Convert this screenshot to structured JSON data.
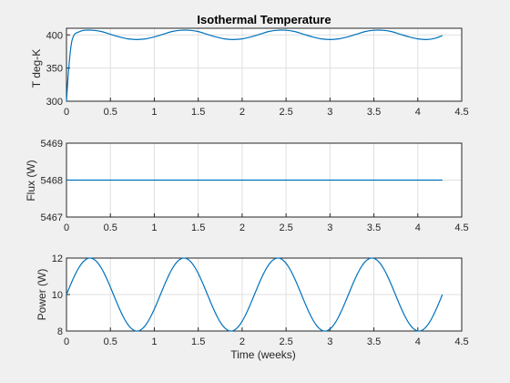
{
  "figure": {
    "background": "#f0f0f0",
    "line_color": "#0072bd"
  },
  "chart_data": [
    {
      "type": "line",
      "title": "Isothermal Temperature",
      "xlabel": "",
      "ylabel": "T deg-K",
      "xlim": [
        0,
        4.5
      ],
      "ylim": [
        300,
        410
      ],
      "xticks": [
        "0",
        "0.5",
        "1",
        "1.5",
        "2",
        "2.5",
        "3",
        "3.5",
        "4",
        "4.5"
      ],
      "yticks": [
        "300",
        "350",
        "400"
      ],
      "grid": true,
      "series": [
        {
          "x": [
            0,
            0.02,
            0.04,
            0.06,
            0.08,
            0.1,
            0.15,
            0.2,
            0.3,
            0.4,
            0.5,
            0.6,
            0.7,
            0.8,
            0.9,
            1.0,
            1.1,
            1.2,
            1.3,
            1.4,
            1.5,
            1.6,
            1.7,
            1.8,
            1.9,
            2.0,
            2.1,
            2.2,
            2.3,
            2.4,
            2.5,
            2.6,
            2.7,
            2.8,
            2.9,
            3.0,
            3.1,
            3.2,
            3.3,
            3.4,
            3.5,
            3.6,
            3.7,
            3.8,
            3.9,
            4.0,
            4.1,
            4.2,
            4.28
          ],
          "values": [
            300,
            340,
            370,
            390,
            398,
            402,
            405,
            407,
            407,
            405,
            401,
            397,
            394,
            393,
            394,
            397,
            401,
            405,
            407,
            407,
            405,
            401,
            397,
            394,
            393,
            394,
            397,
            401,
            405,
            407,
            407,
            405,
            401,
            397,
            394,
            393,
            394,
            397,
            401,
            405,
            407,
            407,
            405,
            401,
            397,
            394,
            393,
            395,
            399
          ]
        }
      ]
    },
    {
      "type": "line",
      "title": "",
      "xlabel": "",
      "ylabel": "Flux (W)",
      "xlim": [
        0,
        4.5
      ],
      "ylim": [
        5467,
        5469
      ],
      "xticks": [
        "0",
        "0.5",
        "1",
        "1.5",
        "2",
        "2.5",
        "3",
        "3.5",
        "4",
        "4.5"
      ],
      "yticks": [
        "5467",
        "5468",
        "5469"
      ],
      "grid": true,
      "series": [
        {
          "x": [
            0,
            4.28
          ],
          "values": [
            5468,
            5468
          ]
        }
      ]
    },
    {
      "type": "line",
      "title": "",
      "xlabel": "Time (weeks)",
      "ylabel": "Power (W)",
      "xlim": [
        0,
        4.5
      ],
      "ylim": [
        8,
        12
      ],
      "xticks": [
        "0",
        "0.5",
        "1",
        "1.5",
        "2",
        "2.5",
        "3",
        "3.5",
        "4",
        "4.5"
      ],
      "yticks": [
        "8",
        "10",
        "12"
      ],
      "grid": true,
      "series": [
        {
          "amplitude": 2,
          "offset": 10,
          "period_weeks": 1.07,
          "x_end": 4.28
        }
      ]
    }
  ]
}
